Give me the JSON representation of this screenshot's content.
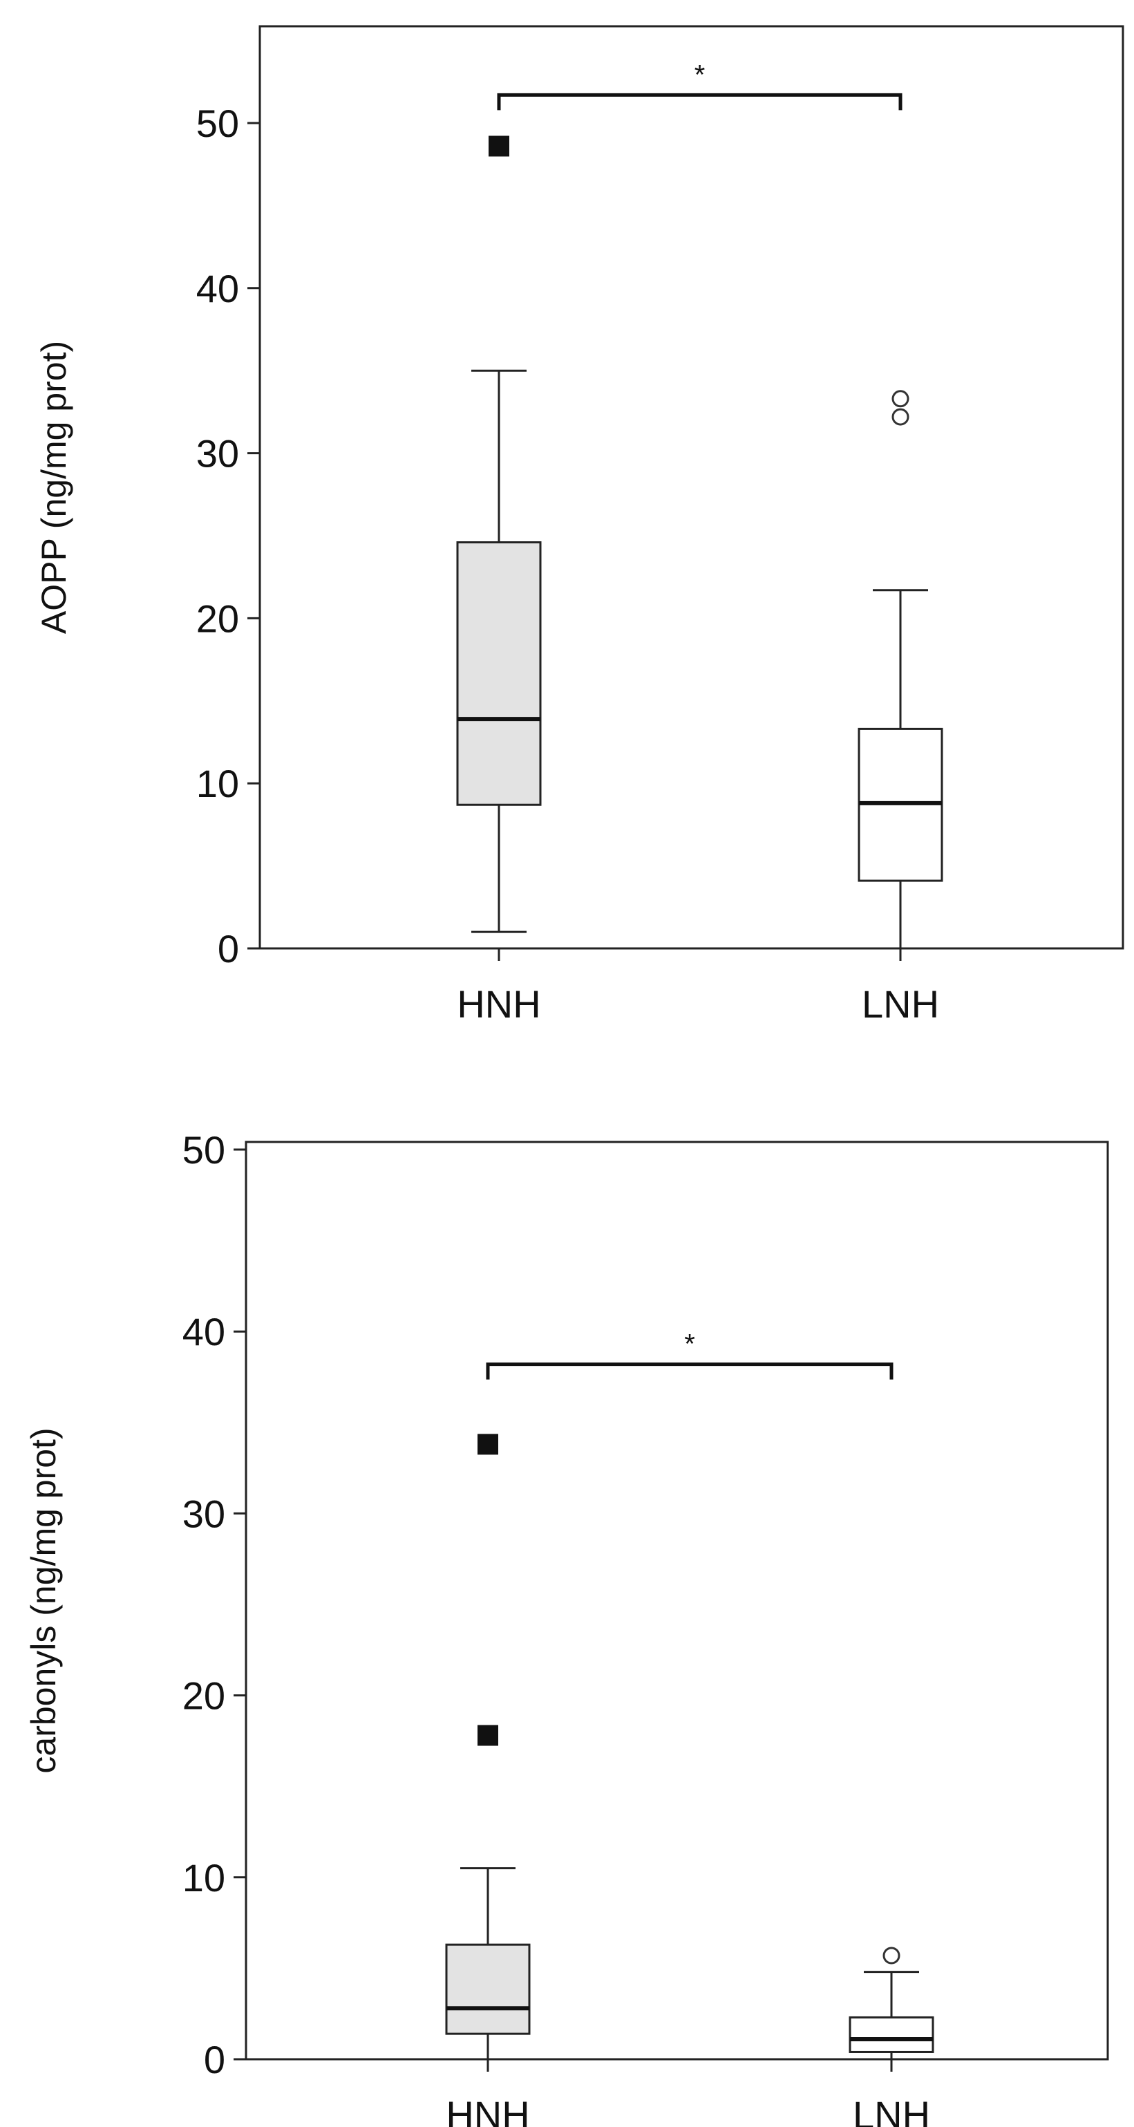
{
  "chart_data": [
    {
      "type": "boxplot",
      "title": "",
      "xlabel": "",
      "ylabel": "AOPP (ng/mg prot)",
      "ylim": [
        0,
        55
      ],
      "yticks": [
        0,
        10,
        20,
        30,
        40,
        50
      ],
      "grid": false,
      "legend": "none",
      "categories": [
        "HNH",
        "LNH"
      ],
      "boxes": [
        {
          "category": "HNH",
          "whisker_low": 1,
          "q1": 8.7,
          "median": 13.9,
          "q3": 24.6,
          "whisker_high": 35,
          "fill": "#e3e3e3",
          "outliers": [],
          "extremes": [
            48.6
          ]
        },
        {
          "category": "LNH",
          "whisker_low": 0,
          "q1": 4.1,
          "median": 8.8,
          "q3": 13.3,
          "whisker_high": 21.7,
          "fill": "#ffffff",
          "outliers": [
            32.2,
            33.3
          ],
          "extremes": []
        }
      ],
      "significance": {
        "from": "HNH",
        "to": "LNH",
        "y": 51.7,
        "label": "*"
      }
    },
    {
      "type": "boxplot",
      "title": "",
      "xlabel": "",
      "ylabel": "carbonyls (ng/mg prot)",
      "ylim": [
        0,
        50
      ],
      "yticks": [
        0,
        10,
        20,
        30,
        40,
        50
      ],
      "grid": false,
      "legend": "none",
      "categories": [
        "HNH",
        "LNH"
      ],
      "boxes": [
        {
          "category": "HNH",
          "whisker_low": 0,
          "q1": 1.4,
          "median": 2.8,
          "q3": 6.3,
          "whisker_high": 10.5,
          "fill": "#e3e3e3",
          "outliers": [],
          "extremes": [
            17.8,
            33.8
          ]
        },
        {
          "category": "LNH",
          "whisker_low": 0,
          "q1": 0.4,
          "median": 1.1,
          "q3": 2.3,
          "whisker_high": 4.8,
          "fill": "#ffffff",
          "outliers": [
            5.7
          ],
          "extremes": []
        }
      ],
      "significance": {
        "from": "HNH",
        "to": "LNH",
        "y": 38.2,
        "label": "*"
      }
    }
  ]
}
